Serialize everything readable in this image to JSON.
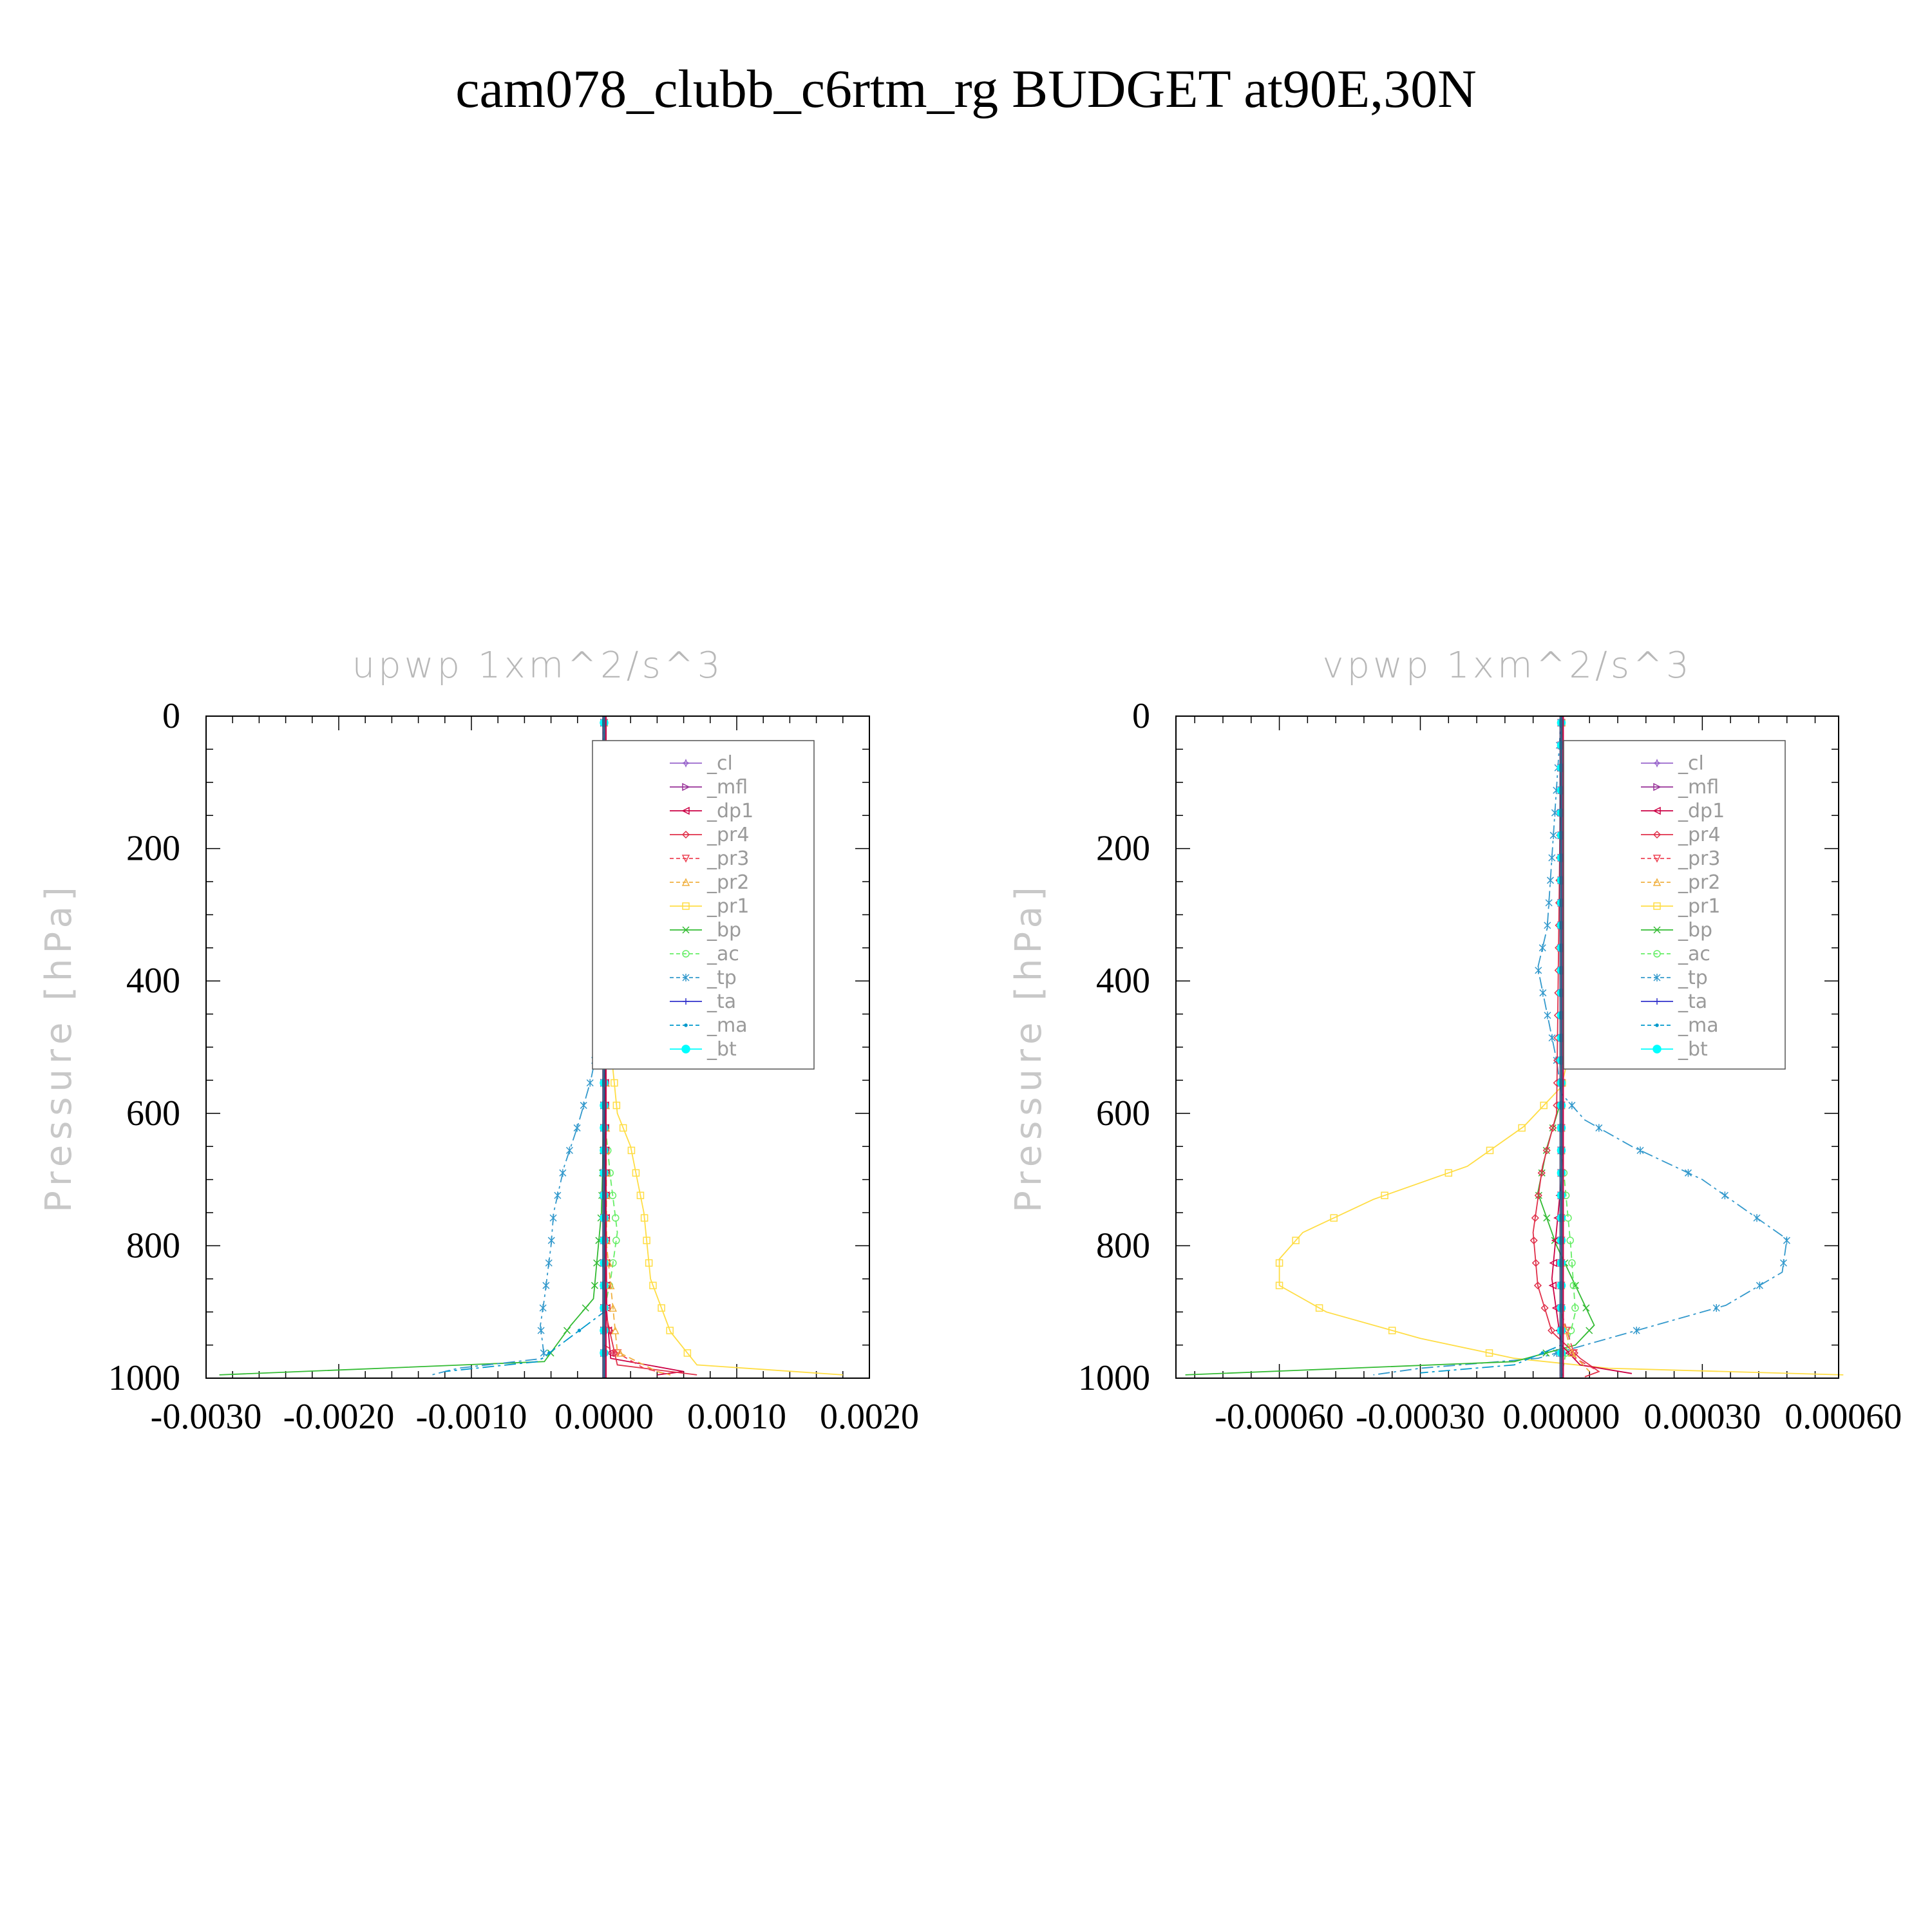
{
  "page": {
    "title": "cam078_clubb_c6rtm_rg  BUDGET at90E,30N"
  },
  "colors": {
    "cl": "#9966cc",
    "mfl": "#993399",
    "dp1": "#cc0044",
    "pr4": "#e0304a",
    "pr3": "#ee4455",
    "pr2": "#f0b040",
    "pr1": "#ffdd44",
    "bp": "#33bb33",
    "ac": "#66ee66",
    "tp": "#3399cc",
    "ta": "#3333cc",
    "ma": "#0099cc",
    "bt": "#00ffff"
  },
  "legend": [
    "_cl",
    "_mfl",
    "_dp1",
    "_pr4",
    "_pr3",
    "_pr2",
    "_pr1",
    "_bp",
    "_ac",
    "_tp",
    "_ta",
    "_ma",
    "_bt"
  ],
  "chart_data": [
    {
      "type": "line",
      "title": "upwp   1xm^2/s^3",
      "ylabel": "Pressure  [hPa]",
      "xlim": [
        -0.003,
        0.002
      ],
      "ylim": [
        0,
        1000
      ],
      "y_inverted": true,
      "xticks": [
        -0.003,
        -0.002,
        -0.001,
        0.0,
        0.001,
        0.002
      ],
      "xtick_labels": [
        "-0.0030",
        "-0.0020",
        "-0.0010",
        "0.0000",
        "0.0010",
        "0.0020"
      ],
      "yticks": [
        0,
        200,
        400,
        600,
        800,
        1000
      ],
      "ytick_labels": [
        "0",
        "200",
        "400",
        "600",
        "800",
        "1000"
      ],
      "legend_position": "upper-right",
      "series": [
        {
          "name": "_pr1",
          "key": "pr1",
          "points": [
            [
              0,
              0
            ],
            [
              1e-05,
              300
            ],
            [
              5e-05,
              500
            ],
            [
              0.0001,
              600
            ],
            [
              0.0002,
              650
            ],
            [
              0.0003,
              750
            ],
            [
              0.00035,
              850
            ],
            [
              0.0005,
              930
            ],
            [
              0.0007,
              980
            ],
            [
              0.0018,
              995
            ]
          ]
        },
        {
          "name": "_bp",
          "key": "bp",
          "points": [
            [
              0,
              0
            ],
            [
              0,
              600
            ],
            [
              -2e-05,
              750
            ],
            [
              -8e-05,
              880
            ],
            [
              -0.00025,
              920
            ],
            [
              -0.00045,
              975
            ],
            [
              -0.0029,
              995
            ]
          ]
        },
        {
          "name": "_ac",
          "key": "ac",
          "points": [
            [
              0,
              0
            ],
            [
              0,
              600
            ],
            [
              5e-05,
              700
            ],
            [
              0.0001,
              780
            ],
            [
              5e-05,
              850
            ],
            [
              0,
              900
            ],
            [
              0,
              1000
            ]
          ]
        },
        {
          "name": "_tp",
          "key": "tp",
          "points": [
            [
              0,
              0
            ],
            [
              -3e-05,
              400
            ],
            [
              -5e-05,
              500
            ],
            [
              -0.0001,
              550
            ],
            [
              -0.0002,
              620
            ],
            [
              -0.0003,
              680
            ],
            [
              -0.00038,
              750
            ],
            [
              -0.0004,
              800
            ],
            [
              -0.00045,
              880
            ],
            [
              -0.00048,
              920
            ],
            [
              -0.00045,
              970
            ],
            [
              -0.0011,
              985
            ],
            [
              -0.0013,
              995
            ]
          ]
        },
        {
          "name": "_dp1",
          "key": "dp1",
          "points": [
            [
              0,
              0
            ],
            [
              1e-05,
              600
            ],
            [
              2e-05,
              900
            ],
            [
              5e-05,
              970
            ],
            [
              0.0006,
              990
            ],
            [
              0.0004,
              995
            ]
          ]
        },
        {
          "name": "_pr4",
          "key": "pr4",
          "points": [
            [
              0,
              0
            ],
            [
              1e-05,
              900
            ],
            [
              0.0001,
              980
            ],
            [
              0.0007,
              995
            ]
          ]
        },
        {
          "name": "_pr3",
          "key": "pr3",
          "points": [
            [
              0,
              0
            ],
            [
              0,
              950
            ],
            [
              0.0003,
              985
            ],
            [
              0.0005,
              995
            ]
          ]
        },
        {
          "name": "_pr2",
          "key": "pr2",
          "points": [
            [
              0,
              0
            ],
            [
              2e-05,
              800
            ],
            [
              0.0001,
              960
            ],
            [
              0.0004,
              990
            ],
            [
              0.0005,
              995
            ]
          ]
        },
        {
          "name": "_ma",
          "key": "ma",
          "points": [
            [
              0,
              0
            ],
            [
              0,
              900
            ],
            [
              -0.0005,
              975
            ],
            [
              -0.0012,
              990
            ]
          ]
        },
        {
          "name": "_cl",
          "key": "cl",
          "points": [
            [
              0,
              0
            ],
            [
              0,
              1000
            ]
          ]
        },
        {
          "name": "_mfl",
          "key": "mfl",
          "points": [
            [
              0,
              0
            ],
            [
              0,
              1000
            ]
          ]
        },
        {
          "name": "_ta",
          "key": "ta",
          "points": [
            [
              0,
              0
            ],
            [
              0,
              1000
            ]
          ]
        },
        {
          "name": "_bt",
          "key": "bt",
          "points": [
            [
              0,
              0
            ],
            [
              0,
              1000
            ]
          ]
        }
      ]
    },
    {
      "type": "line",
      "title": "vpwp   1xm^2/s^3",
      "ylabel": "Pressure  [hPa]",
      "xlim": [
        -0.00082,
        0.00059
      ],
      "ylim": [
        0,
        1000
      ],
      "y_inverted": true,
      "xticks": [
        -0.0006,
        -0.0003,
        0.0,
        0.0003,
        0.0006
      ],
      "xtick_labels": [
        "-0.00060",
        "-0.00030",
        "0.00000",
        "0.00030",
        "0.00060"
      ],
      "yticks": [
        0,
        200,
        400,
        600,
        800,
        1000
      ],
      "ytick_labels": [
        "0",
        "200",
        "400",
        "600",
        "800",
        "1000"
      ],
      "legend_position": "upper-right",
      "series": [
        {
          "name": "_pr1",
          "key": "pr1",
          "points": [
            [
              0,
              0
            ],
            [
              3e-05,
              300
            ],
            [
              5e-05,
              400
            ],
            [
              2e-05,
              500
            ],
            [
              0,
              560
            ],
            [
              -8e-05,
              620
            ],
            [
              -0.0002,
              680
            ],
            [
              -0.0004,
              730
            ],
            [
              -0.00055,
              780
            ],
            [
              -0.0006,
              820
            ],
            [
              -0.0006,
              860
            ],
            [
              -0.0005,
              900
            ],
            [
              -0.0003,
              940
            ],
            [
              -0.0001,
              970
            ],
            [
              0.0001,
              985
            ],
            [
              0.0006,
              995
            ]
          ]
        },
        {
          "name": "_tp",
          "key": "tp",
          "points": [
            [
              0,
              0
            ],
            [
              -3e-05,
              320
            ],
            [
              -5e-05,
              380
            ],
            [
              -3e-05,
              450
            ],
            [
              -1e-05,
              520
            ],
            [
              0,
              570
            ],
            [
              5e-05,
              610
            ],
            [
              0.00015,
              650
            ],
            [
              0.0003,
              700
            ],
            [
              0.0004,
              750
            ],
            [
              0.00048,
              790
            ],
            [
              0.00047,
              840
            ],
            [
              0.00035,
              890
            ],
            [
              0.0002,
              920
            ],
            [
              5e-05,
              950
            ],
            [
              -5e-05,
              970
            ],
            [
              -0.0003,
              985
            ],
            [
              -0.0004,
              995
            ]
          ]
        },
        {
          "name": "_bp",
          "key": "bp",
          "points": [
            [
              0,
              0
            ],
            [
              0,
              580
            ],
            [
              -3e-05,
              650
            ],
            [
              -5e-05,
              720
            ],
            [
              -1e-05,
              800
            ],
            [
              3e-05,
              860
            ],
            [
              7e-05,
              920
            ],
            [
              3e-05,
              950
            ],
            [
              -0.0001,
              975
            ],
            [
              -0.0008,
              995
            ]
          ]
        },
        {
          "name": "_ac",
          "key": "ac",
          "points": [
            [
              0,
              0
            ],
            [
              0,
              650
            ],
            [
              2e-05,
              800
            ],
            [
              3e-05,
              900
            ],
            [
              1e-05,
              960
            ],
            [
              0,
              1000
            ]
          ]
        },
        {
          "name": "_pr4",
          "key": "pr4",
          "points": [
            [
              0,
              0
            ],
            [
              -1e-05,
              600
            ],
            [
              -4e-05,
              680
            ],
            [
              -6e-05,
              780
            ],
            [
              -5e-05,
              860
            ],
            [
              -2e-05,
              930
            ],
            [
              4e-05,
              970
            ],
            [
              8e-05,
              990
            ],
            [
              5e-05,
              998
            ]
          ]
        },
        {
          "name": "_dp1",
          "key": "dp1",
          "points": [
            [
              0,
              0
            ],
            [
              0,
              700
            ],
            [
              -2e-05,
              850
            ],
            [
              0,
              950
            ],
            [
              4e-05,
              980
            ],
            [
              0.00015,
              993
            ]
          ]
        },
        {
          "name": "_pr3",
          "key": "pr3",
          "points": [
            [
              0,
              0
            ],
            [
              0,
              900
            ],
            [
              3e-05,
              970
            ],
            [
              8e-05,
              990
            ]
          ]
        },
        {
          "name": "_pr2",
          "key": "pr2",
          "points": [
            [
              0,
              0
            ],
            [
              0,
              900
            ],
            [
              2e-05,
              960
            ],
            [
              6e-05,
              990
            ]
          ]
        },
        {
          "name": "_ma",
          "key": "ma",
          "points": [
            [
              0,
              0
            ],
            [
              0,
              950
            ],
            [
              -0.0001,
              980
            ],
            [
              -0.0003,
              992
            ]
          ]
        },
        {
          "name": "_cl",
          "key": "cl",
          "points": [
            [
              0,
              0
            ],
            [
              0,
              1000
            ]
          ]
        },
        {
          "name": "_mfl",
          "key": "mfl",
          "points": [
            [
              0,
              0
            ],
            [
              0,
              1000
            ]
          ]
        },
        {
          "name": "_ta",
          "key": "ta",
          "points": [
            [
              0,
              0
            ],
            [
              0,
              1000
            ]
          ]
        },
        {
          "name": "_bt",
          "key": "bt",
          "points": [
            [
              0,
              0
            ],
            [
              0,
              1000
            ]
          ]
        }
      ]
    }
  ]
}
